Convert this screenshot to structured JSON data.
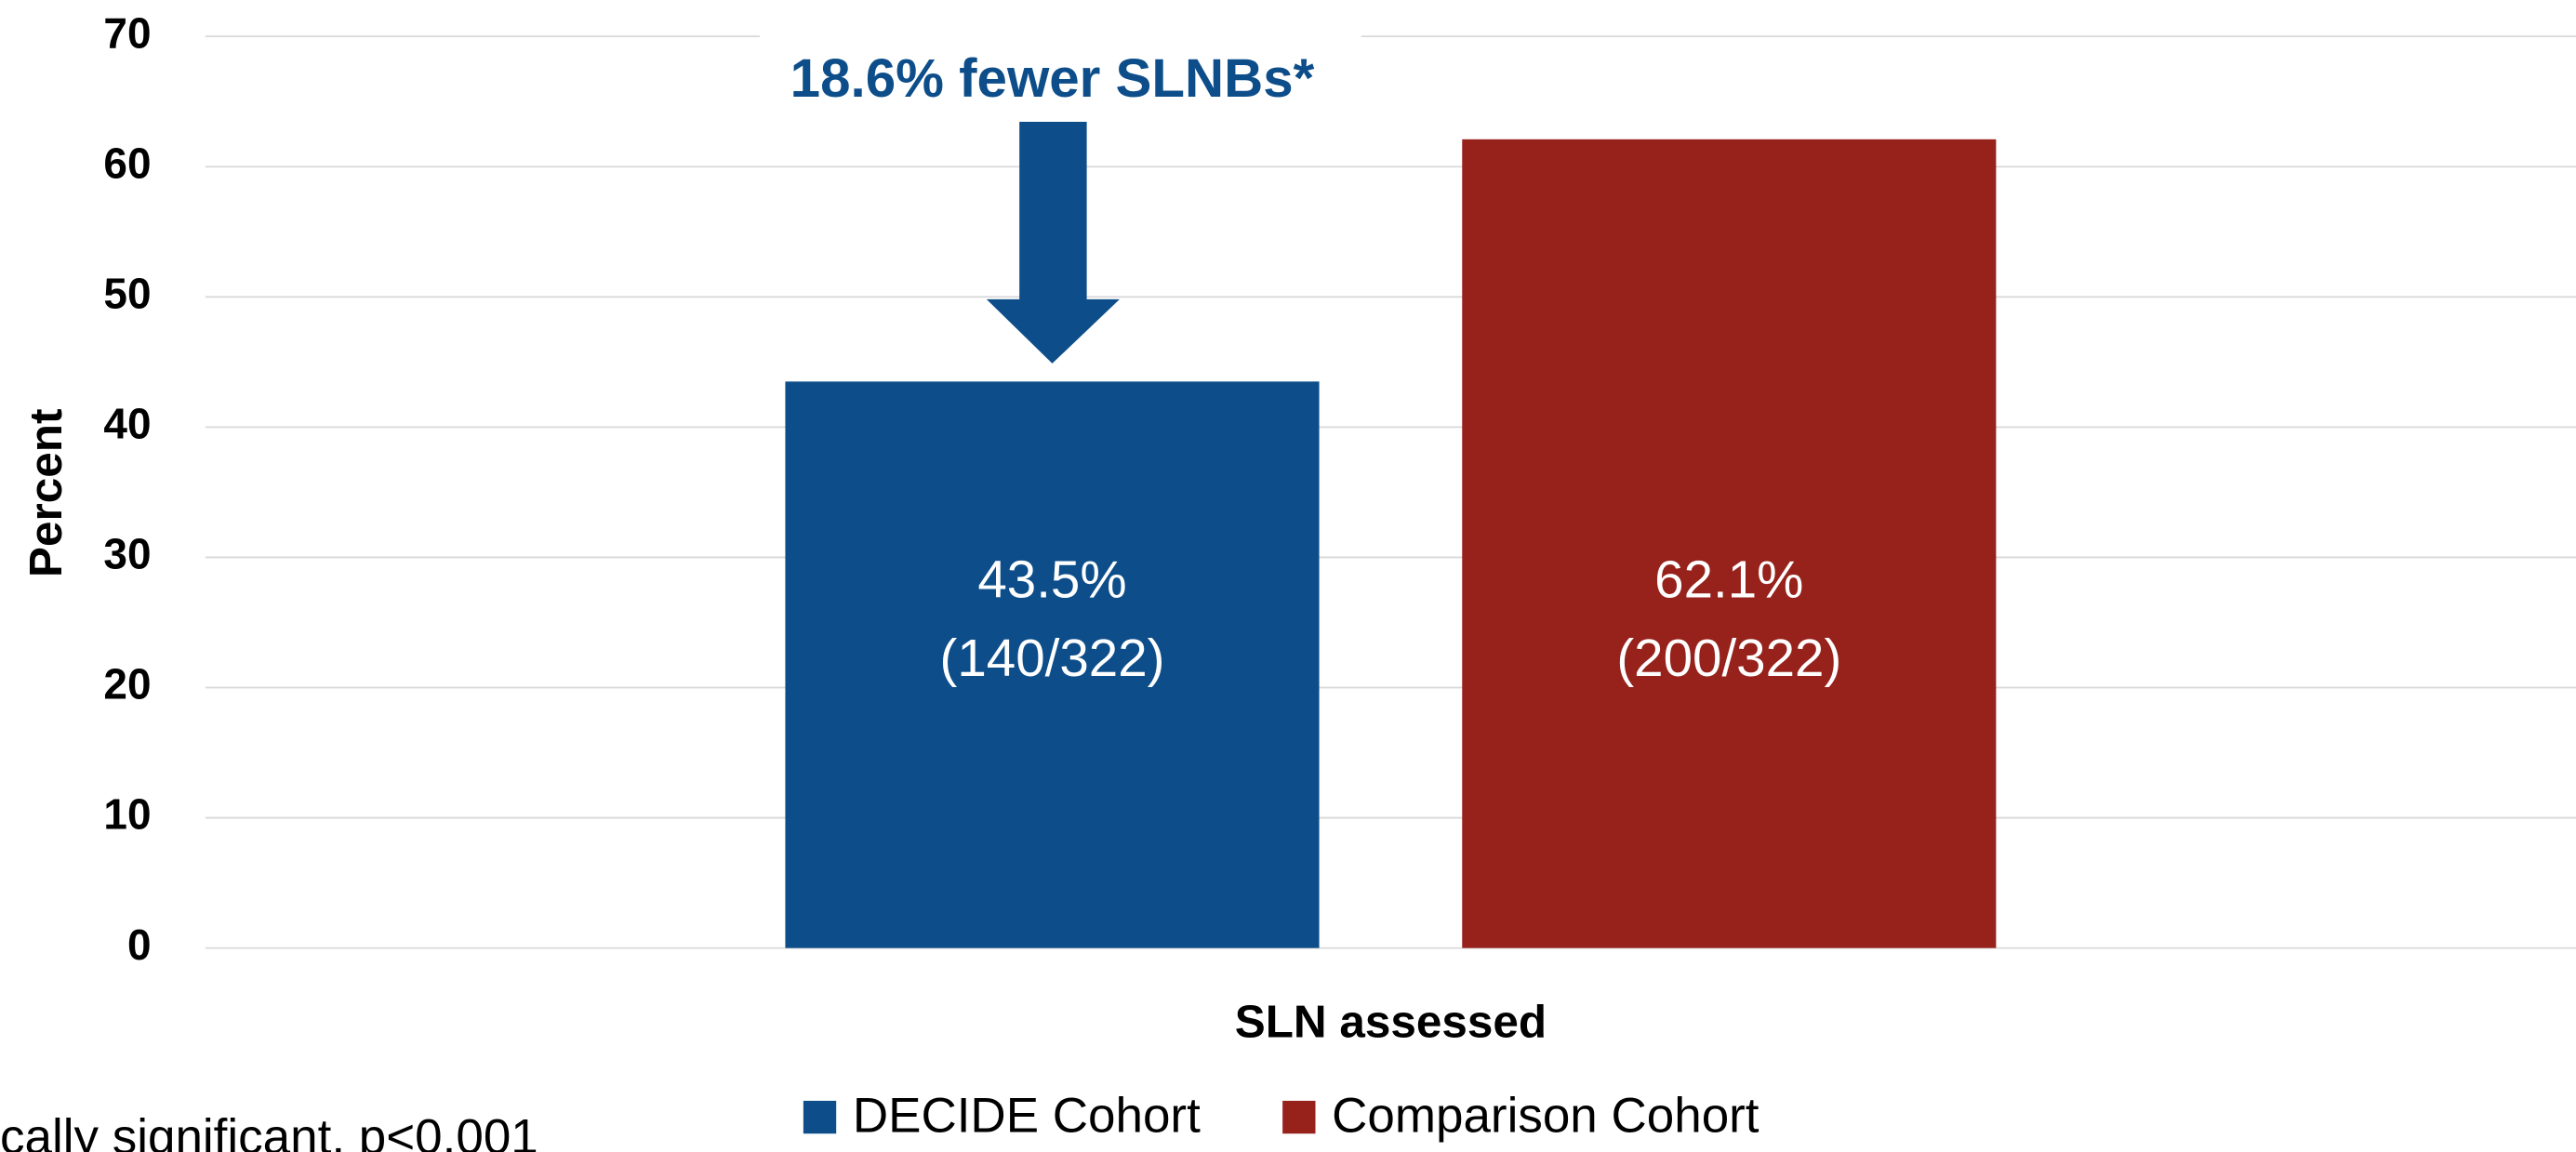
{
  "chart_data": {
    "type": "bar",
    "categories": [
      "SLN assessed"
    ],
    "series": [
      {
        "name": "DECIDE Cohort",
        "color": "#0d4e8a",
        "values": [
          43.5
        ],
        "value_labels": [
          [
            "43.5%",
            "(140/322)"
          ]
        ]
      },
      {
        "name": "Comparison Cohort",
        "color": "#96221b",
        "values": [
          62.1
        ],
        "value_labels": [
          [
            "62.1%",
            "(200/322)"
          ]
        ]
      }
    ],
    "ylabel": "Percent",
    "ylim": [
      0,
      70
    ],
    "yticks": [
      0,
      10,
      20,
      30,
      40,
      50,
      60,
      70
    ],
    "grid": true,
    "annotation": "18.6% fewer SLNBs*",
    "footnote": "cally significant, p<0.001",
    "legend": "bottom"
  }
}
